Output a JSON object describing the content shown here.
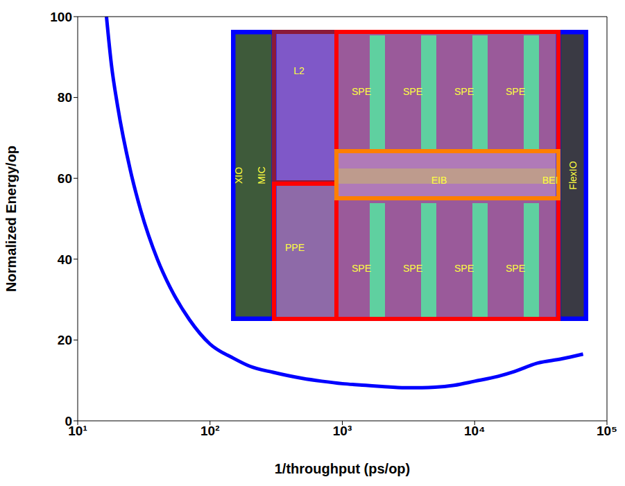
{
  "chart_data": {
    "type": "line",
    "xlabel": "1/throughput (ps/op)",
    "ylabel": "Normalized Energy/op",
    "log": "x",
    "grid": false,
    "color": "#0000ff",
    "x": [
      16.5,
      18,
      20,
      25,
      30,
      40,
      50,
      70,
      100,
      150,
      200,
      300,
      500,
      700,
      1000,
      1500,
      2000,
      3000,
      4000,
      5000,
      7000,
      10000,
      15000,
      20000,
      30000,
      45000,
      66000
    ],
    "values": [
      100,
      88,
      78,
      62,
      52,
      40,
      33,
      25,
      19,
      15.5,
      13.5,
      12,
      10.5,
      9.8,
      9.2,
      8.8,
      8.5,
      8.2,
      8.2,
      8.3,
      8.8,
      9.8,
      11,
      12.2,
      14.3,
      15.3,
      16.5
    ],
    "xlim": [
      10,
      100000
    ],
    "xticks": [
      {
        "value": 10,
        "label": "10¹"
      },
      {
        "value": 100,
        "label": "10²"
      },
      {
        "value": 1000,
        "label": "10³"
      },
      {
        "value": 10000,
        "label": "10⁴"
      },
      {
        "value": 100000,
        "label": "10⁵"
      }
    ],
    "ylim": [
      0,
      100
    ],
    "yticks": [
      0,
      20,
      40,
      60,
      80,
      100
    ],
    "annotations": [
      "XIO",
      "MIC",
      "L2",
      "PPE",
      "SPE",
      "SPE",
      "SPE",
      "SPE",
      "EIB",
      "BEI",
      "SPE",
      "SPE",
      "SPE",
      "SPE",
      "FlexIO"
    ]
  }
}
